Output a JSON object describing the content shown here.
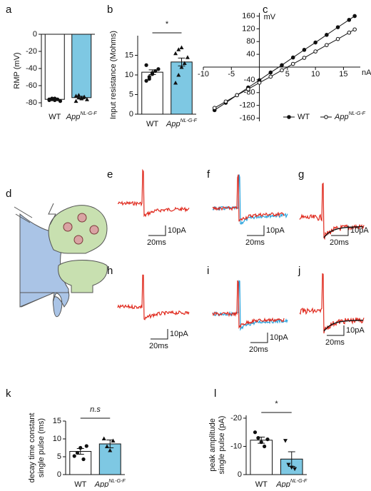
{
  "panel_labels": [
    "a",
    "b",
    "c",
    "d",
    "e",
    "f",
    "g",
    "h",
    "i",
    "j",
    "k",
    "l"
  ],
  "scale_bars": {
    "current": "10pA",
    "time": "20ms"
  },
  "chart_data": [
    {
      "type": "bar",
      "ylabel": [
        "RMP (mV)"
      ],
      "categories": [
        "WT",
        "App"
      ],
      "category_superscripts": [
        null,
        "NL-G-F"
      ],
      "values": [
        -76,
        -74
      ],
      "errors": [
        1,
        1.5
      ],
      "points": [
        [
          -77,
          -76,
          -75,
          -76,
          -78,
          -76,
          -75,
          -77
        ],
        [
          -72,
          -74,
          -75,
          -73,
          -76,
          -78,
          -71,
          -74
        ]
      ],
      "colors": [
        "#ffffff",
        "#7ec8e3"
      ],
      "ylim": [
        -85,
        0
      ],
      "yticks": [
        0,
        -20,
        -40,
        -60,
        -80
      ]
    },
    {
      "type": "bar",
      "ylabel": [
        "Input resistance (Mohms)"
      ],
      "categories": [
        "WT",
        "App"
      ],
      "category_superscripts": [
        null,
        "NL-G-F"
      ],
      "values": [
        10.7,
        13.3
      ],
      "errors": [
        0.6,
        1.0
      ],
      "points": [
        [
          8.5,
          9.5,
          10.2,
          11,
          11.5,
          12.5,
          9,
          10.5
        ],
        [
          8,
          10,
          12,
          13,
          14.5,
          15.5,
          16.5,
          17
        ]
      ],
      "colors": [
        "#ffffff",
        "#7ec8e3"
      ],
      "annotation": "*",
      "ylim": [
        0,
        20
      ],
      "yticks": [
        0,
        5,
        10,
        15
      ]
    },
    {
      "type": "line",
      "ylabel": [
        "mV"
      ],
      "xlabel": "nA",
      "x": [
        -8,
        -6,
        -4,
        -2,
        0,
        2,
        4,
        6,
        8,
        10,
        12,
        14,
        16,
        17
      ],
      "series": [
        {
          "name": "WT",
          "color": "#111111",
          "marker": "filled",
          "values": [
            -135,
            -112,
            -88,
            -64,
            -41,
            -17,
            6,
            30,
            54,
            77,
            101,
            125,
            148,
            160
          ]
        },
        {
          "name": "App",
          "name_superscript": "NL-G-F",
          "color": "#111111",
          "marker": "hollow",
          "values": [
            -128,
            -108,
            -88,
            -69,
            -49,
            -30,
            -10,
            10,
            29,
            49,
            69,
            88,
            108,
            118
          ]
        }
      ],
      "xlim": [
        -10,
        18
      ],
      "xticks": [
        -10,
        -5,
        5,
        10,
        15
      ],
      "ylim": [
        -170,
        170
      ],
      "yticks": [
        -160,
        -120,
        -80,
        -40,
        40,
        80,
        120,
        160
      ]
    },
    {
      "type": "bar",
      "ylabel": [
        "decay time constant",
        "single  pulse (ms)"
      ],
      "categories": [
        "WT",
        "App"
      ],
      "category_superscripts": [
        null,
        "NL-G-F"
      ],
      "values": [
        6.5,
        8.6
      ],
      "errors": [
        0.8,
        1.1
      ],
      "points": [
        [
          5.2,
          6.1,
          7.5,
          4.3,
          8.0
        ],
        [
          10.1,
          7.9,
          6.8,
          9.5
        ]
      ],
      "colors": [
        "#ffffff",
        "#7ec8e3"
      ],
      "annotation": "n.s",
      "ylim": [
        0,
        15
      ],
      "yticks": [
        0,
        5,
        10,
        15
      ]
    },
    {
      "type": "bar",
      "ylabel": [
        "peak amplitude",
        "single pulse (pA)"
      ],
      "categories": [
        "WT",
        "App"
      ],
      "category_superscripts": [
        null,
        "NL-G-F"
      ],
      "values": [
        -12.2,
        -5.5
      ],
      "errors": [
        1.1,
        2.6
      ],
      "points": [
        [
          -15,
          -13,
          -11.5,
          -10,
          -12.5
        ],
        [
          -12,
          -3.5,
          -2.5,
          -2
        ]
      ],
      "colors": [
        "#ffffff",
        "#7ec8e3"
      ],
      "annotation": "*",
      "yaxis_reversed": true,
      "ylim": [
        -21,
        0
      ],
      "yticks": [
        0,
        -10,
        -20
      ]
    }
  ]
}
